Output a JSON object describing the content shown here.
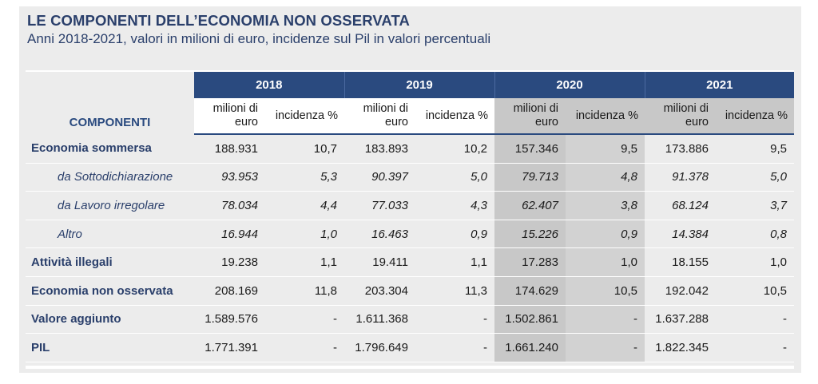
{
  "title": "LE COMPONENTI DELL’ECONOMIA NON OSSERVATA",
  "subtitle": "Anni 2018-2021, valori in milioni di euro, incidenze sul Pil in valori percentuali",
  "colors": {
    "header_bg": "#2a4a7f",
    "title": "#2a3f6b",
    "highlight_2020": "#c8c8c8",
    "panel_bg": "#ececec"
  },
  "chart_data": {
    "type": "table",
    "row_header": "COMPONENTI",
    "years": [
      "2018",
      "2019",
      "2020",
      "2021"
    ],
    "sub_headers": {
      "value_line1": "milioni di",
      "value_line2": "euro",
      "pct": "incidenza %"
    },
    "rows": [
      {
        "label": "Economia sommersa",
        "cells": [
          "188.931",
          "10,7",
          "183.893",
          "10,2",
          "157.346",
          "9,5",
          "173.886",
          "9,5"
        ]
      },
      {
        "label": "da Sottodichiarazione",
        "cells": [
          "93.953",
          "5,3",
          "90.397",
          "5,0",
          "79.713",
          "4,8",
          "91.378",
          "5,0"
        ]
      },
      {
        "label": "da Lavoro irregolare",
        "cells": [
          "78.034",
          "4,4",
          "77.033",
          "4,3",
          "62.407",
          "3,8",
          "68.124",
          "3,7"
        ]
      },
      {
        "label": "Altro",
        "cells": [
          "16.944",
          "1,0",
          "16.463",
          "0,9",
          "15.226",
          "0,9",
          "14.384",
          "0,8"
        ]
      },
      {
        "label": "Attività illegali",
        "cells": [
          "19.238",
          "1,1",
          "19.411",
          "1,1",
          "17.283",
          "1,0",
          "18.155",
          "1,0"
        ]
      },
      {
        "label": "Economia non osservata",
        "cells": [
          "208.169",
          "11,8",
          "203.304",
          "11,3",
          "174.629",
          "10,5",
          "192.042",
          "10,5"
        ]
      },
      {
        "label": "Valore aggiunto",
        "cells": [
          "1.589.576",
          "-",
          "1.611.368",
          "-",
          "1.502.861",
          "-",
          "1.637.288",
          "-"
        ]
      },
      {
        "label": "PIL",
        "cells": [
          "1.771.391",
          "-",
          "1.796.649",
          "-",
          "1.661.240",
          "-",
          "1.822.345",
          "-"
        ]
      }
    ]
  }
}
